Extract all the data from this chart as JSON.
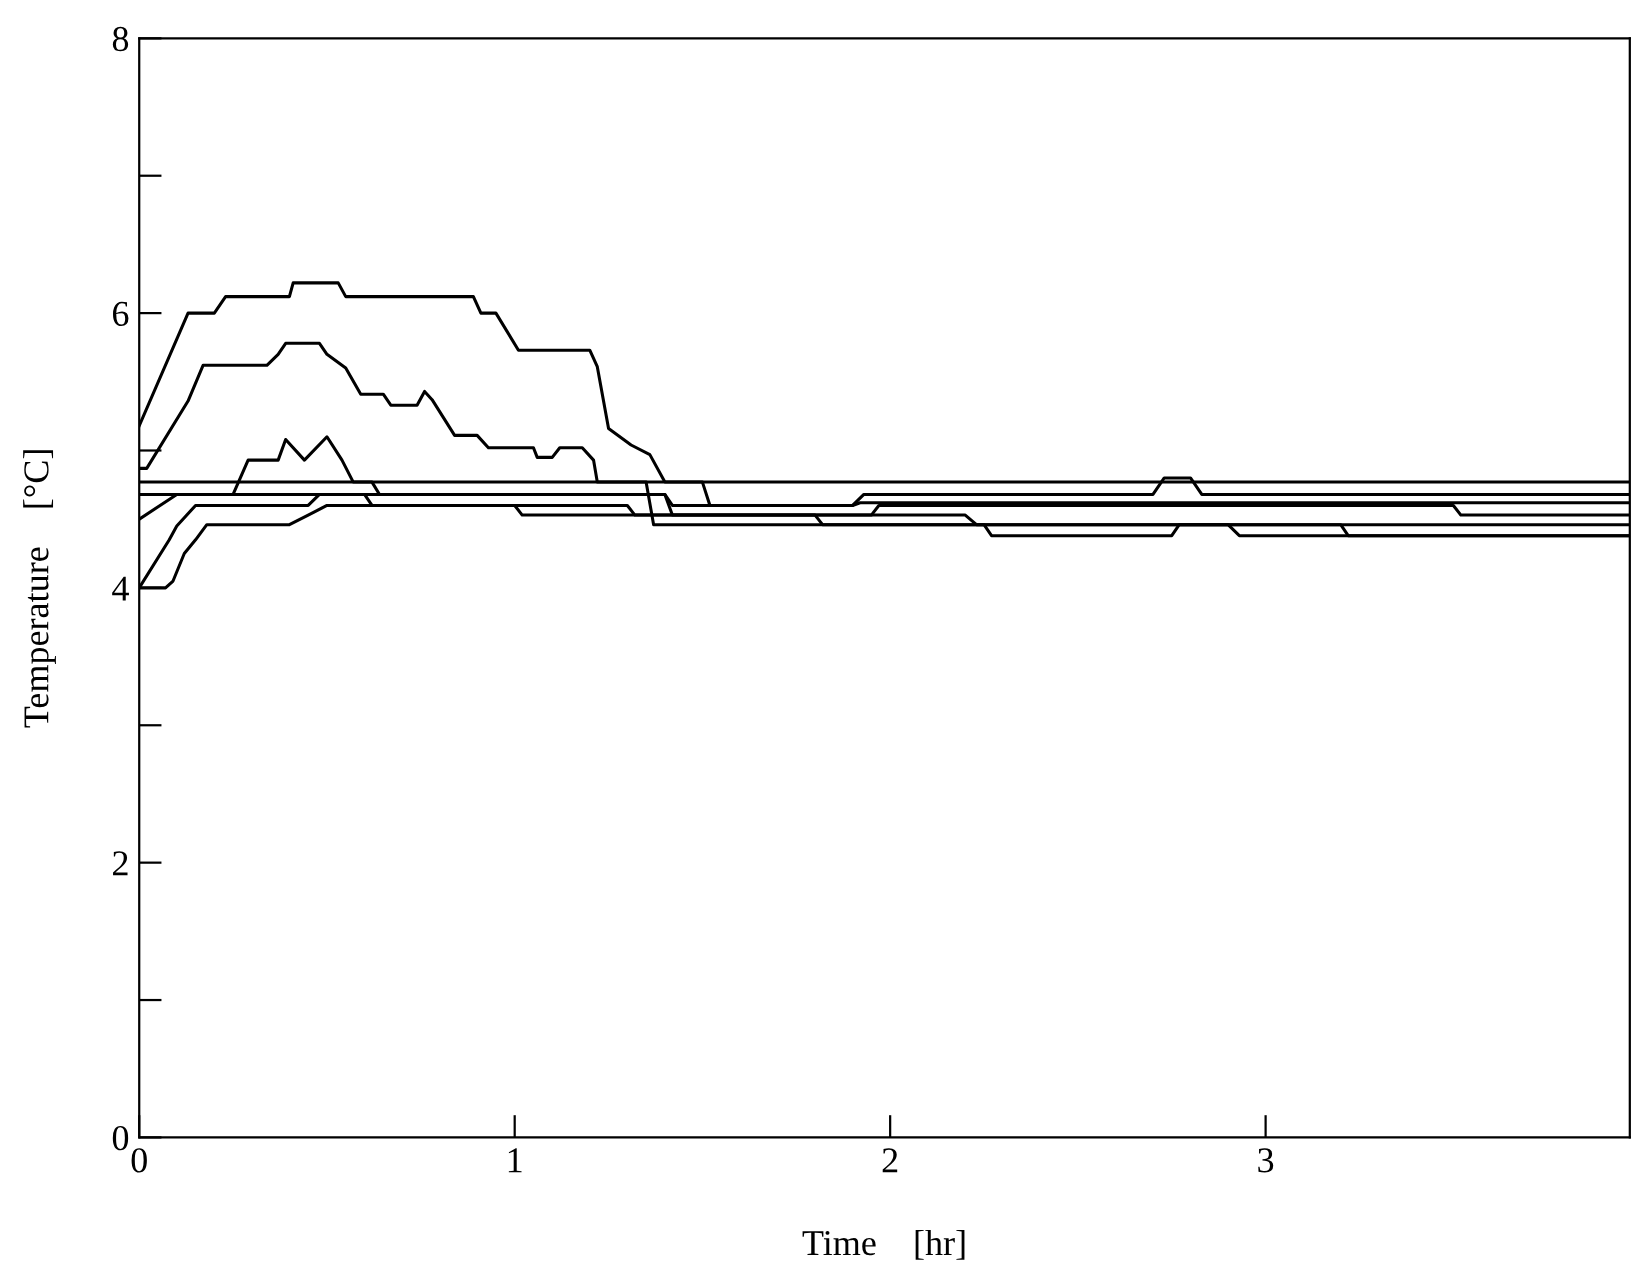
{
  "chart_data": {
    "type": "line",
    "xlabel": "Time    [hr]",
    "ylabel": "Temperature    [°C]",
    "xlim": [
      0,
      3.97
    ],
    "ylim": [
      0,
      8
    ],
    "xticks": [
      0,
      1,
      2,
      3
    ],
    "yticks": [
      0,
      {
        "value": 1,
        "label": null
      },
      2,
      {
        "value": 3,
        "label": null
      },
      4,
      {
        "value": 5,
        "label": null
      },
      6,
      {
        "value": 7,
        "label": null
      },
      8
    ],
    "grid": false,
    "legend": false,
    "marker": "none",
    "line_style": "solid",
    "series": [
      {
        "color": "#000000",
        "x": [
          0,
          0.13,
          0.2,
          0.23,
          0.4,
          0.41,
          0.53,
          0.55,
          0.89,
          0.91,
          0.95,
          1.01,
          1.2,
          1.22,
          1.25,
          1.31,
          1.36,
          1.4,
          1.5,
          1.52,
          1.9,
          1.92,
          3.97
        ],
        "values": [
          5.18,
          6.0,
          6.0,
          6.12,
          6.12,
          6.22,
          6.22,
          6.12,
          6.12,
          6.0,
          6.0,
          5.73,
          5.73,
          5.61,
          5.16,
          5.04,
          4.97,
          4.77,
          4.77,
          4.6,
          4.6,
          4.62,
          4.62
        ]
      },
      {
        "color": "#000000",
        "x": [
          0,
          0.02,
          0.13,
          0.17,
          0.34,
          0.37,
          0.39,
          0.48,
          0.5,
          0.55,
          0.59,
          0.65,
          0.67,
          0.74,
          0.76,
          0.78,
          0.84,
          0.9,
          0.93,
          1.05,
          1.06,
          1.1,
          1.12,
          1.18,
          1.21,
          1.22,
          1.35,
          1.37,
          2.25,
          2.27,
          2.75,
          2.77,
          3.2,
          3.22,
          3.97
        ],
        "values": [
          4.87,
          4.87,
          5.36,
          5.62,
          5.62,
          5.7,
          5.78,
          5.78,
          5.7,
          5.6,
          5.41,
          5.41,
          5.33,
          5.33,
          5.43,
          5.37,
          5.11,
          5.11,
          5.02,
          5.02,
          4.95,
          4.95,
          5.02,
          5.02,
          4.93,
          4.77,
          4.77,
          4.46,
          4.46,
          4.38,
          4.38,
          4.46,
          4.46,
          4.38,
          4.38
        ]
      },
      {
        "color": "#000000",
        "x": [
          0,
          0.25,
          0.29,
          0.37,
          0.39,
          0.44,
          0.5,
          0.54,
          0.57,
          0.62,
          0.64,
          1.4,
          1.42,
          1.9,
          1.93,
          2.7,
          2.73,
          2.8,
          2.83,
          3.97
        ],
        "values": [
          4.68,
          4.68,
          4.93,
          4.93,
          5.08,
          4.93,
          5.1,
          4.93,
          4.77,
          4.77,
          4.68,
          4.68,
          4.6,
          4.6,
          4.68,
          4.68,
          4.8,
          4.8,
          4.68,
          4.68
        ]
      },
      {
        "color": "#000000",
        "x": [
          0,
          3.97
        ],
        "values": [
          4.77,
          4.77
        ]
      },
      {
        "color": "#000000",
        "x": [
          0,
          0.1,
          0.6,
          0.62,
          1.3,
          1.32,
          1.95,
          1.97,
          3.5,
          3.52,
          3.97
        ],
        "values": [
          4.5,
          4.68,
          4.68,
          4.6,
          4.6,
          4.53,
          4.53,
          4.6,
          4.6,
          4.53,
          4.53
        ]
      },
      {
        "color": "#000000",
        "x": [
          0,
          0.08,
          0.1,
          0.15,
          0.45,
          0.48,
          0.55,
          1.4,
          1.42,
          2.2,
          2.23,
          2.9,
          2.93,
          3.97
        ],
        "values": [
          4.0,
          4.35,
          4.45,
          4.6,
          4.6,
          4.68,
          4.68,
          4.68,
          4.53,
          4.53,
          4.46,
          4.46,
          4.38,
          4.38
        ]
      },
      {
        "color": "#000000",
        "x": [
          0,
          0.07,
          0.09,
          0.12,
          0.15,
          0.18,
          0.22,
          0.4,
          0.45,
          0.5,
          1.0,
          1.02,
          1.8,
          1.82,
          3.97
        ],
        "values": [
          4.0,
          4.0,
          4.05,
          4.25,
          4.35,
          4.46,
          4.46,
          4.46,
          4.53,
          4.6,
          4.6,
          4.53,
          4.53,
          4.46,
          4.46
        ]
      }
    ]
  }
}
